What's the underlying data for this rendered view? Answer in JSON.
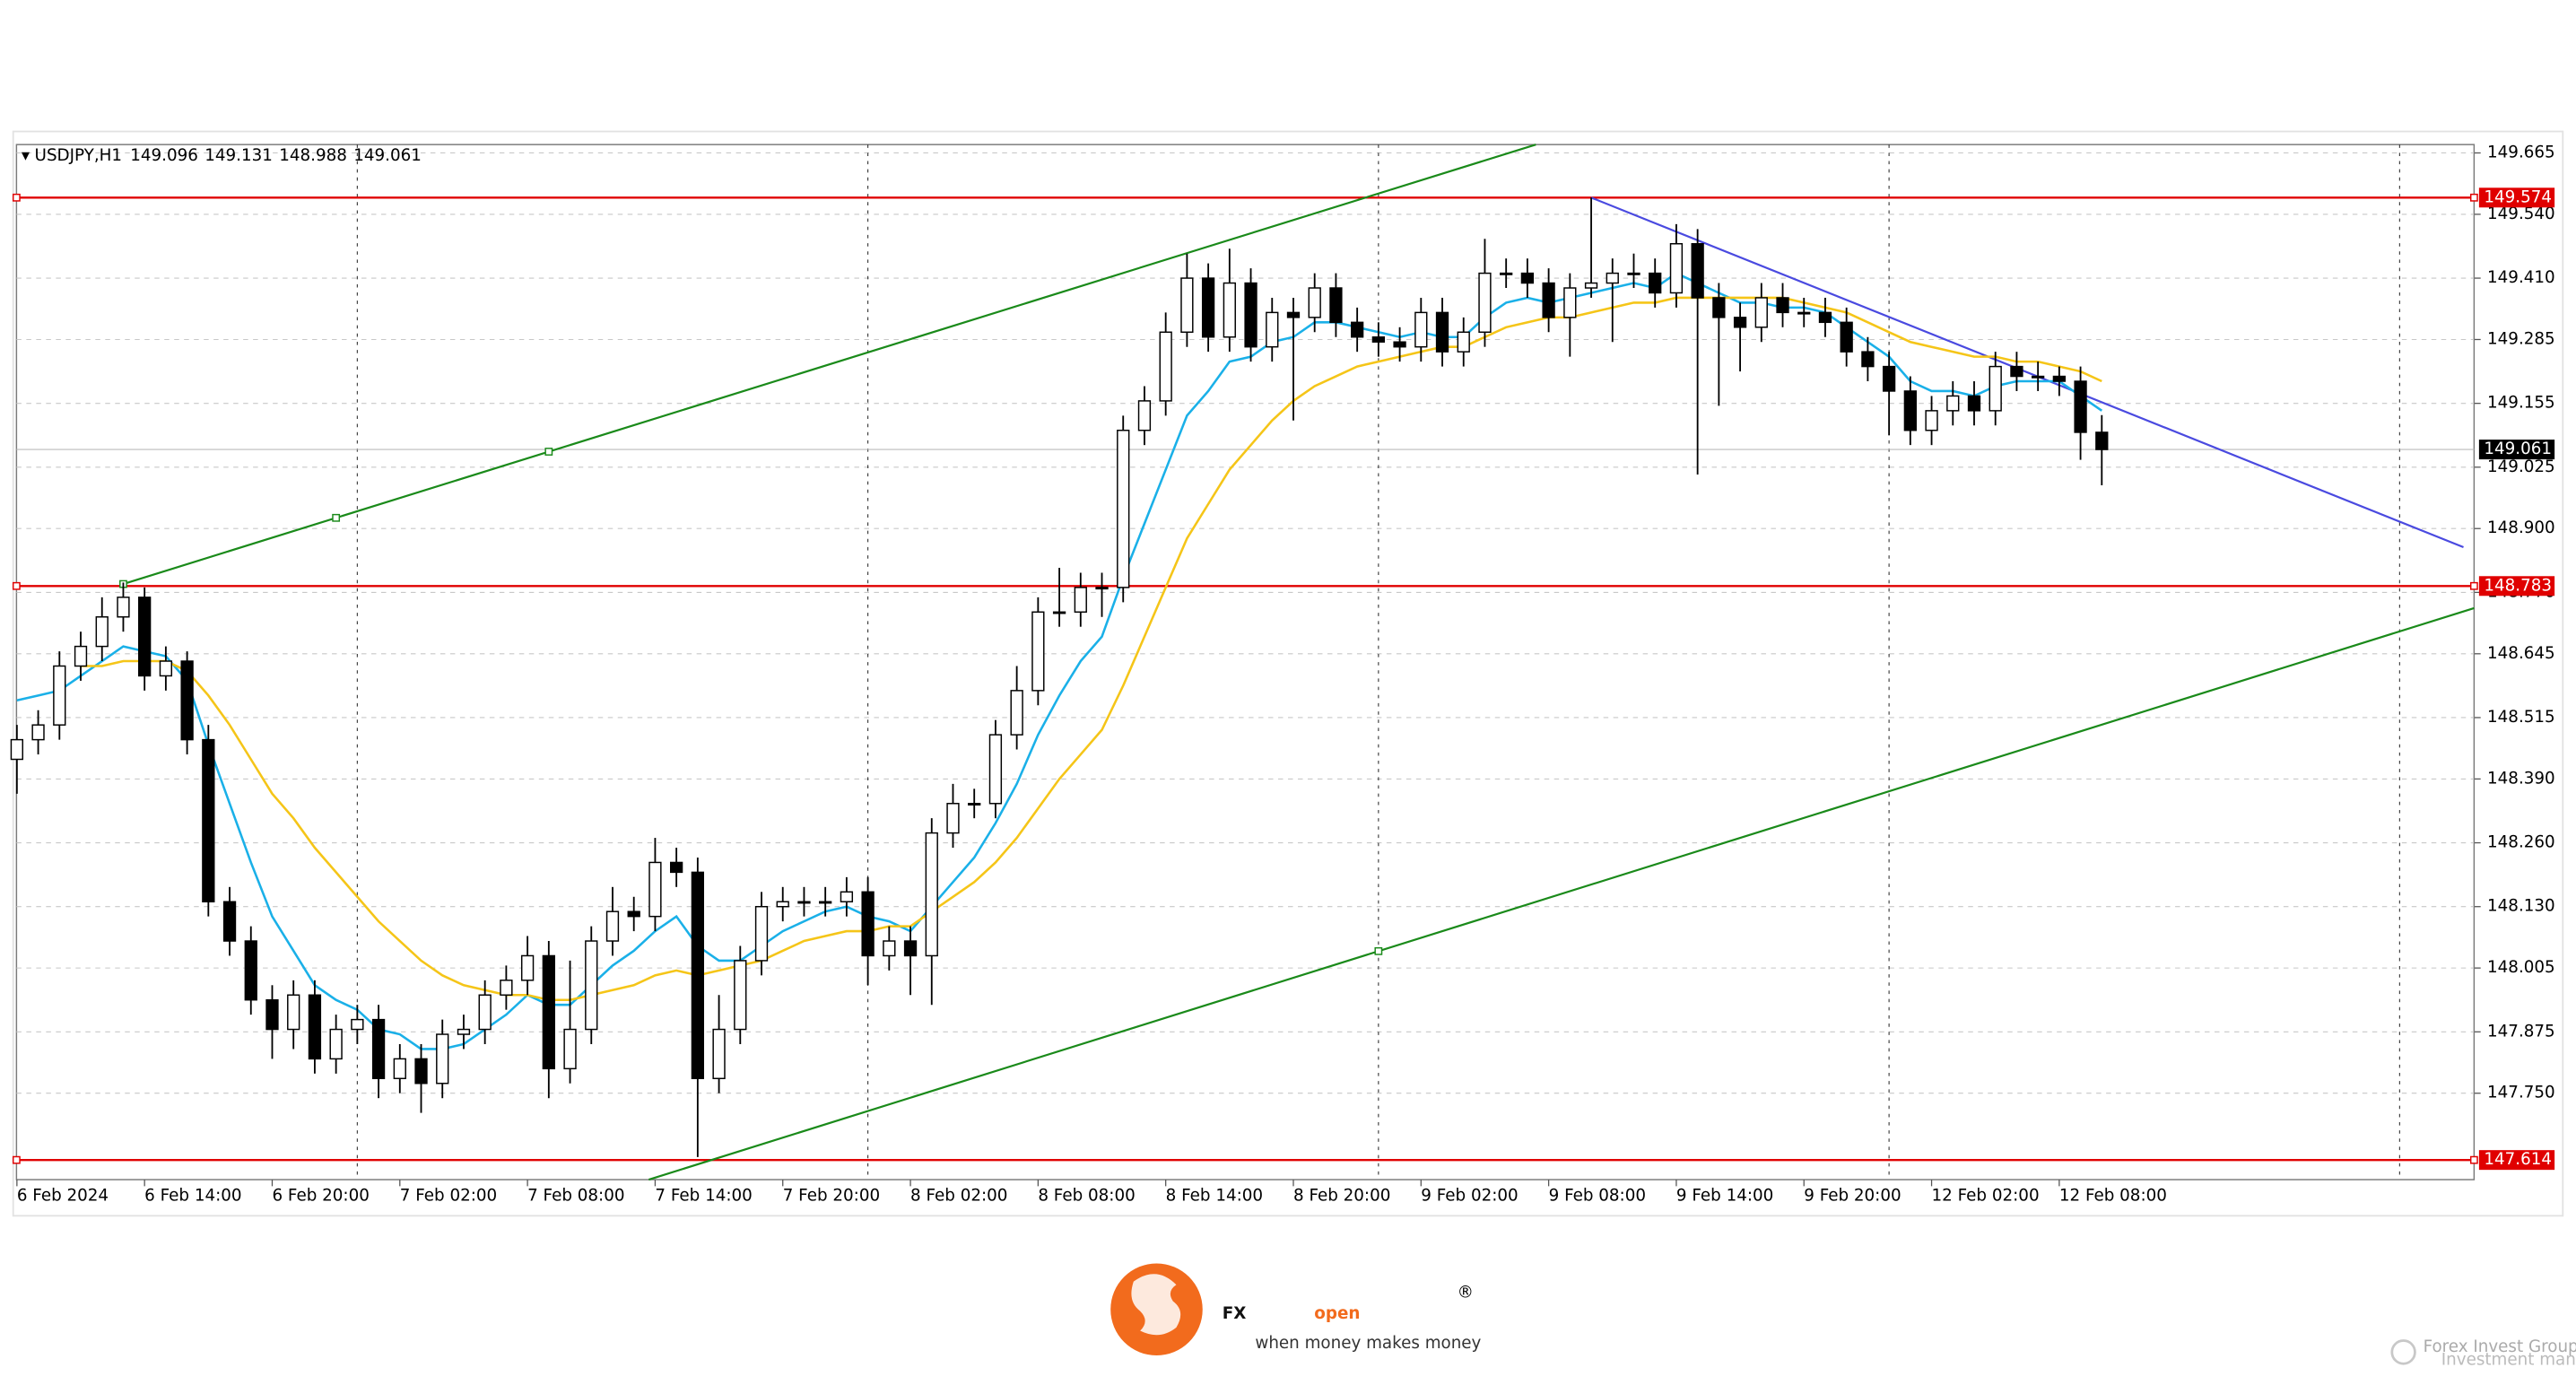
{
  "chart_data": {
    "type": "candlestick",
    "symbol": "USDJPY,H1",
    "ohlc_header": [
      149.096,
      149.131,
      148.988,
      149.061
    ],
    "categories": [
      "6 Feb 2024",
      null,
      null,
      null,
      null,
      null,
      "6 Feb 14:00",
      null,
      null,
      null,
      null,
      null,
      "6 Feb 20:00",
      null,
      null,
      null,
      null,
      null,
      "7 Feb 02:00",
      null,
      null,
      null,
      null,
      null,
      "7 Feb 08:00",
      null,
      null,
      null,
      null,
      null,
      "7 Feb 14:00",
      null,
      null,
      null,
      null,
      null,
      "7 Feb 20:00",
      null,
      null,
      null,
      null,
      null,
      "8 Feb 02:00",
      null,
      null,
      null,
      null,
      null,
      "8 Feb 08:00",
      null,
      null,
      null,
      null,
      null,
      "8 Feb 14:00",
      null,
      null,
      null,
      null,
      null,
      "8 Feb 20:00",
      null,
      null,
      null,
      null,
      null,
      "9 Feb 02:00",
      null,
      null,
      null,
      null,
      null,
      "9 Feb 08:00",
      null,
      null,
      null,
      null,
      null,
      "9 Feb 14:00",
      null,
      null,
      null,
      null,
      null,
      "9 Feb 20:00",
      null,
      null,
      null,
      null,
      null,
      "12 Feb 02:00",
      null,
      null,
      null,
      null,
      null,
      "12 Feb 08:00",
      null,
      null
    ],
    "candles": {
      "up_color": "#ffffff",
      "down_color": "#000000",
      "open": [
        148.43,
        148.47,
        148.5,
        148.62,
        148.66,
        148.72,
        148.76,
        148.6,
        148.63,
        148.47,
        148.14,
        148.06,
        147.94,
        147.88,
        147.95,
        147.82,
        147.88,
        147.9,
        147.78,
        147.82,
        147.77,
        147.87,
        147.88,
        147.95,
        147.98,
        148.03,
        147.8,
        147.88,
        148.06,
        148.12,
        148.11,
        148.22,
        148.2,
        147.78,
        147.88,
        148.02,
        148.13,
        148.14,
        148.14,
        148.14,
        148.16,
        148.03,
        148.06,
        148.03,
        148.28,
        148.34,
        148.34,
        148.48,
        148.57,
        148.73,
        148.73,
        148.78,
        148.78,
        149.1,
        149.16,
        149.3,
        149.41,
        149.29,
        149.4,
        149.27,
        149.34,
        149.33,
        149.39,
        149.32,
        149.29,
        149.28,
        149.27,
        149.34,
        149.26,
        149.3,
        149.42,
        149.42,
        149.4,
        149.33,
        149.39,
        149.4,
        149.42,
        149.42,
        149.38,
        149.48,
        149.37,
        149.33,
        149.31,
        149.37,
        149.34,
        149.34,
        149.32,
        149.26,
        149.23,
        149.18,
        149.1,
        149.14,
        149.17,
        149.14,
        149.23,
        149.21,
        149.21,
        149.2,
        149.096
      ],
      "high": [
        148.5,
        148.53,
        148.65,
        148.69,
        148.76,
        148.79,
        148.78,
        148.66,
        148.65,
        148.5,
        148.17,
        148.09,
        147.97,
        147.98,
        147.98,
        147.91,
        147.93,
        147.93,
        147.85,
        147.85,
        147.9,
        147.91,
        147.98,
        148.01,
        148.07,
        148.06,
        148.02,
        148.09,
        148.17,
        148.15,
        148.27,
        148.25,
        148.23,
        147.95,
        148.05,
        148.16,
        148.17,
        148.17,
        148.17,
        148.19,
        148.19,
        148.09,
        148.09,
        148.31,
        148.38,
        148.37,
        148.51,
        148.62,
        148.76,
        148.82,
        148.81,
        148.81,
        149.13,
        149.19,
        149.34,
        149.46,
        149.44,
        149.47,
        149.43,
        149.37,
        149.37,
        149.42,
        149.42,
        149.35,
        149.32,
        149.31,
        149.37,
        149.37,
        149.33,
        149.49,
        149.45,
        149.45,
        149.43,
        149.42,
        149.574,
        149.45,
        149.46,
        149.45,
        149.52,
        149.51,
        149.4,
        149.36,
        149.4,
        149.4,
        149.37,
        149.37,
        149.35,
        149.29,
        149.26,
        149.21,
        149.17,
        149.2,
        149.2,
        149.26,
        149.26,
        149.24,
        149.23,
        149.23,
        149.131
      ],
      "low": [
        148.36,
        148.44,
        148.47,
        148.59,
        148.63,
        148.69,
        148.57,
        148.57,
        148.44,
        148.11,
        148.03,
        147.91,
        147.82,
        147.84,
        147.79,
        147.79,
        147.85,
        147.74,
        147.75,
        147.71,
        147.74,
        147.84,
        147.85,
        147.92,
        147.95,
        147.74,
        147.77,
        147.85,
        148.03,
        148.08,
        148.08,
        148.17,
        147.62,
        147.75,
        147.85,
        147.99,
        148.1,
        148.11,
        148.11,
        148.11,
        147.97,
        148.0,
        147.95,
        147.93,
        148.25,
        148.31,
        148.31,
        148.45,
        148.54,
        148.7,
        148.7,
        148.72,
        148.75,
        149.07,
        149.13,
        149.27,
        149.26,
        149.26,
        149.24,
        149.24,
        149.12,
        149.3,
        149.29,
        149.26,
        149.25,
        149.24,
        149.24,
        149.23,
        149.23,
        149.27,
        149.39,
        149.37,
        149.3,
        149.25,
        149.37,
        149.28,
        149.39,
        149.35,
        149.35,
        149.01,
        149.15,
        149.22,
        149.28,
        149.31,
        149.31,
        149.29,
        149.23,
        149.2,
        149.09,
        149.07,
        149.07,
        149.11,
        149.11,
        149.11,
        149.18,
        149.18,
        149.17,
        149.04,
        148.988
      ],
      "close": [
        148.47,
        148.5,
        148.62,
        148.66,
        148.72,
        148.76,
        148.6,
        148.63,
        148.47,
        148.14,
        148.06,
        147.94,
        147.88,
        147.95,
        147.82,
        147.88,
        147.9,
        147.78,
        147.82,
        147.77,
        147.87,
        147.88,
        147.95,
        147.98,
        148.03,
        147.8,
        147.88,
        148.06,
        148.12,
        148.11,
        148.22,
        148.2,
        147.78,
        147.88,
        148.02,
        148.13,
        148.14,
        148.14,
        148.14,
        148.16,
        148.03,
        148.06,
        148.03,
        148.28,
        148.34,
        148.34,
        148.48,
        148.57,
        148.73,
        148.73,
        148.78,
        148.78,
        149.1,
        149.16,
        149.3,
        149.41,
        149.29,
        149.4,
        149.27,
        149.34,
        149.33,
        149.39,
        149.32,
        149.29,
        149.28,
        149.27,
        149.34,
        149.26,
        149.3,
        149.42,
        149.42,
        149.4,
        149.33,
        149.39,
        149.4,
        149.42,
        149.42,
        149.38,
        149.48,
        149.37,
        149.33,
        149.31,
        149.37,
        149.34,
        149.34,
        149.32,
        149.26,
        149.23,
        149.18,
        149.1,
        149.14,
        149.17,
        149.14,
        149.23,
        149.21,
        149.21,
        149.2,
        149.096,
        149.061
      ]
    },
    "lines": [
      {
        "color": "#1ab0e8",
        "values": [
          148.55,
          148.56,
          148.57,
          148.6,
          148.63,
          148.66,
          148.65,
          148.64,
          148.59,
          148.46,
          148.34,
          148.22,
          148.11,
          148.04,
          147.97,
          147.94,
          147.92,
          147.88,
          147.87,
          147.84,
          147.84,
          147.85,
          147.88,
          147.91,
          147.95,
          147.93,
          147.93,
          147.97,
          148.01,
          148.04,
          148.08,
          148.11,
          148.05,
          148.02,
          148.02,
          148.05,
          148.08,
          148.1,
          148.12,
          148.13,
          148.11,
          148.1,
          148.08,
          148.13,
          148.18,
          148.23,
          148.3,
          148.38,
          148.48,
          148.56,
          148.63,
          148.68,
          148.8,
          148.91,
          149.02,
          149.13,
          149.18,
          149.24,
          149.25,
          149.28,
          149.29,
          149.32,
          149.32,
          149.31,
          149.3,
          149.29,
          149.3,
          149.29,
          149.29,
          149.33,
          149.36,
          149.37,
          149.36,
          149.37,
          149.38,
          149.39,
          149.4,
          149.39,
          149.42,
          149.4,
          149.38,
          149.36,
          149.36,
          149.35,
          149.35,
          149.34,
          149.31,
          149.28,
          149.25,
          149.2,
          149.18,
          149.18,
          149.17,
          149.19,
          149.2,
          149.2,
          149.2,
          149.17,
          149.14
        ]
      },
      {
        "color": "#f5c518",
        "values": [
          null,
          null,
          null,
          148.62,
          148.62,
          148.63,
          148.63,
          148.63,
          148.61,
          148.56,
          148.5,
          148.43,
          148.36,
          148.31,
          148.25,
          148.2,
          148.15,
          148.1,
          148.06,
          148.02,
          147.99,
          147.97,
          147.96,
          147.95,
          147.95,
          147.94,
          147.94,
          147.95,
          147.96,
          147.97,
          147.99,
          148.0,
          147.99,
          148.0,
          148.01,
          148.02,
          148.04,
          148.06,
          148.07,
          148.08,
          148.08,
          148.09,
          148.09,
          148.12,
          148.15,
          148.18,
          148.22,
          148.27,
          148.33,
          148.39,
          148.44,
          148.49,
          148.58,
          148.68,
          148.78,
          148.88,
          148.95,
          149.02,
          149.07,
          149.12,
          149.16,
          149.19,
          149.21,
          149.23,
          149.24,
          149.25,
          149.26,
          149.27,
          149.27,
          149.29,
          149.31,
          149.32,
          149.33,
          149.33,
          149.34,
          149.35,
          149.36,
          149.36,
          149.37,
          149.37,
          149.37,
          149.37,
          149.37,
          149.37,
          149.36,
          149.35,
          149.34,
          149.32,
          149.3,
          149.28,
          149.27,
          149.26,
          149.25,
          149.25,
          149.24,
          149.24,
          149.23,
          149.22,
          149.2
        ]
      }
    ],
    "trendlines": [
      {
        "color": "#1a8a1a",
        "x": [
          5,
          71.4
        ],
        "y": [
          148.787,
          149.682
        ],
        "anchors": [
          5,
          15,
          25
        ]
      },
      {
        "color": "#1a8a1a",
        "x": [
          29.7,
          115.5
        ],
        "y": [
          147.574,
          148.738
        ],
        "anchors": [
          64
        ]
      },
      {
        "color": "#4a4ae0",
        "x": [
          74,
          115
        ],
        "y": [
          149.574,
          148.862
        ]
      }
    ],
    "levels": [
      {
        "value": 149.574,
        "color": "#e00000"
      },
      {
        "value": 148.783,
        "color": "#e00000"
      },
      {
        "value": 147.614,
        "color": "#e00000"
      }
    ],
    "last_price": 149.061,
    "xlim": [
      -0.02,
      115.5
    ],
    "ylim": [
      147.574,
      149.682
    ],
    "yticks": [
      149.665,
      {
        "value": 149.54,
        "label": "149.540"
      },
      {
        "value": 149.41,
        "label": "149.410"
      },
      149.285,
      149.155,
      149.025,
      {
        "value": 148.9,
        "label": "148.900"
      },
      {
        "value": 148.77,
        "label": "148.770"
      },
      148.645,
      148.515,
      {
        "value": 148.39,
        "label": "148.390"
      },
      {
        "value": 148.26,
        "label": "148.260"
      },
      {
        "value": 148.13,
        "label": "148.130"
      },
      148.005,
      147.875,
      {
        "value": 147.75,
        "label": "147.750"
      }
    ],
    "day_separators": [
      16,
      40,
      64,
      88,
      112
    ],
    "grid": true
  },
  "footer": {
    "brand_fx": "FX",
    "brand_open": "open",
    "tagline": "when money makes money",
    "watermark": "Forex Invest Group OU",
    "watermark_sub": "Investment management company"
  }
}
